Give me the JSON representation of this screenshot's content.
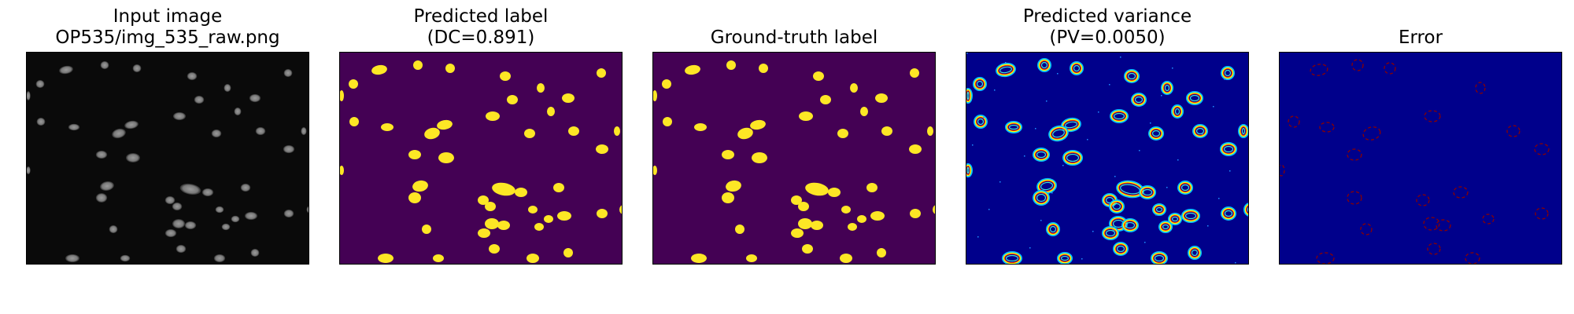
{
  "panels": [
    {
      "title_line1": "Input image",
      "title_line2": "OP535/img_535_raw.png"
    },
    {
      "title_line1": "Predicted label",
      "title_line2": "(DC=0.891)"
    },
    {
      "title_line1": "",
      "title_line2": "Ground-truth label"
    },
    {
      "title_line1": "Predicted variance",
      "title_line2": "(PV=0.0050)"
    },
    {
      "title_line1": "",
      "title_line2": "Error"
    }
  ],
  "colors": {
    "raw_background": "#0a0a0a",
    "raw_cell": "#8c8c8c",
    "label_background": "#440154",
    "label_cell": "#fde725",
    "variance_background": "#00008b",
    "error_background": "#00008b",
    "error_outline": "#8b0000"
  }
}
